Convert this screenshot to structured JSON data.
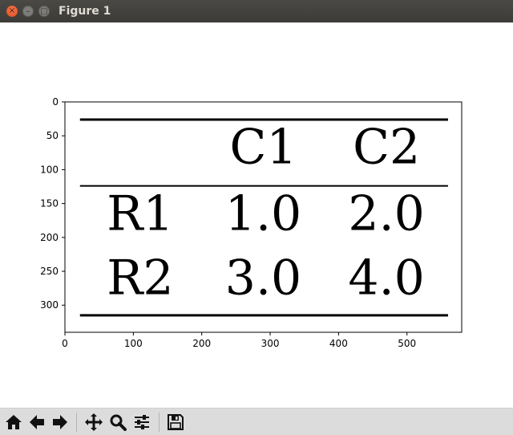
{
  "window": {
    "title": "Figure 1",
    "close_glyph": "×",
    "min_glyph": "–",
    "max_glyph": "□"
  },
  "toolbar": {
    "items": [
      {
        "name": "home-button",
        "icon": "home-icon"
      },
      {
        "name": "back-button",
        "icon": "arrow-left-icon"
      },
      {
        "name": "forward-button",
        "icon": "arrow-right-icon"
      },
      {
        "name": "pan-button",
        "icon": "move-icon"
      },
      {
        "name": "zoom-button",
        "icon": "magnifier-icon"
      },
      {
        "name": "configure-subplots-button",
        "icon": "sliders-icon"
      },
      {
        "name": "save-button",
        "icon": "floppy-disk-icon"
      }
    ]
  },
  "chart_data": {
    "type": "table",
    "title": "",
    "xlabel": "",
    "ylabel": "",
    "xlim": [
      0,
      580
    ],
    "ylim": [
      340,
      0
    ],
    "y_inverted": true,
    "grid": false,
    "x_ticks": [
      0,
      100,
      200,
      300,
      400,
      500
    ],
    "y_ticks": [
      0,
      50,
      100,
      150,
      200,
      250,
      300
    ],
    "columns": [
      "",
      "C1",
      "C2"
    ],
    "rows": [
      {
        "label": "R1",
        "values": [
          "1.0",
          "2.0"
        ]
      },
      {
        "label": "R2",
        "values": [
          "3.0",
          "4.0"
        ]
      }
    ],
    "rules": [
      {
        "y": 26,
        "x_start": 22,
        "x_end": 560,
        "weight": "thick"
      },
      {
        "y": 124,
        "x_start": 22,
        "x_end": 560,
        "weight": "thin"
      },
      {
        "y": 315,
        "x_start": 22,
        "x_end": 560,
        "weight": "thick"
      }
    ],
    "column_centers": [
      110,
      290,
      470
    ],
    "row_centers": [
      67,
      165,
      260
    ]
  }
}
